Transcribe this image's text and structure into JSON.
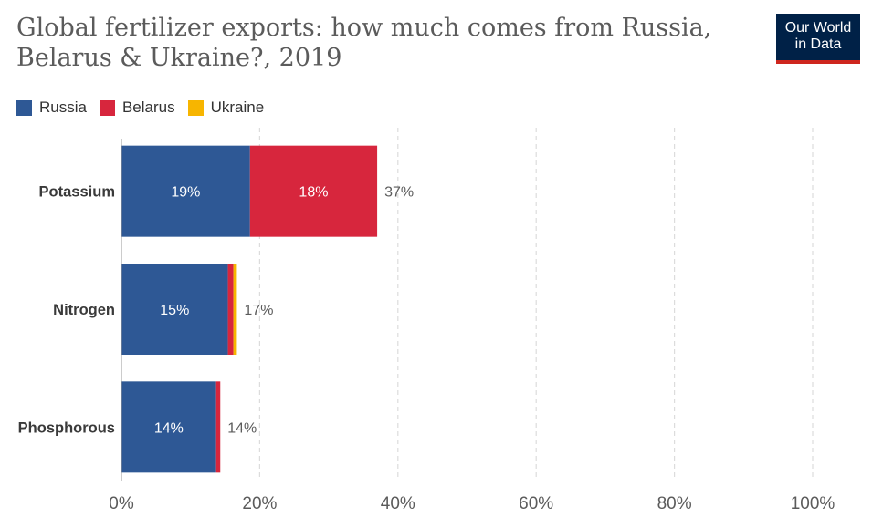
{
  "header": {
    "title": "Global fertilizer exports: how much comes from Russia, Belarus & Ukraine?, 2019",
    "logo_line1": "Our World",
    "logo_line2": "in Data"
  },
  "chart_data": {
    "type": "bar",
    "orientation": "horizontal",
    "stacked": true,
    "title": "Global fertilizer exports: how much comes from Russia, Belarus & Ukraine?, 2019",
    "categories": [
      "Potassium",
      "Nitrogen",
      "Phosphorous"
    ],
    "series": [
      {
        "name": "Russia",
        "color": "#2e5895",
        "values": [
          18.6,
          15.4,
          13.7
        ],
        "labels": [
          "19%",
          "15%",
          "14%"
        ]
      },
      {
        "name": "Belarus",
        "color": "#d7263d",
        "values": [
          18.4,
          0.8,
          0.6
        ],
        "labels": [
          "18%",
          "",
          ""
        ]
      },
      {
        "name": "Ukraine",
        "color": "#f7b500",
        "values": [
          0,
          0.5,
          0
        ],
        "labels": [
          "",
          "",
          ""
        ]
      }
    ],
    "totals": [
      "37%",
      "17%",
      "14%"
    ],
    "xlim": [
      0,
      100
    ],
    "xticks": [
      0,
      20,
      40,
      60,
      80,
      100
    ],
    "xtick_labels": [
      "0%",
      "20%",
      "40%",
      "60%",
      "80%",
      "100%"
    ],
    "xlabel": "",
    "ylabel": "",
    "grid": true,
    "legend_position": "top-left"
  }
}
